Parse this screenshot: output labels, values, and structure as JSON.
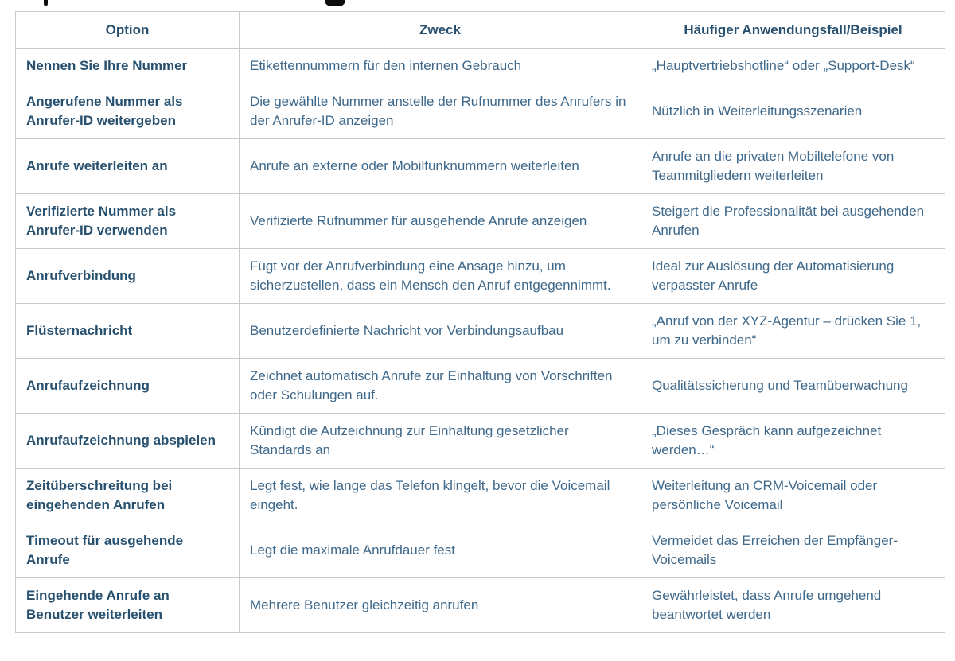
{
  "colors": {
    "header_text": "#27506f",
    "option_text": "#27506f",
    "body_text": "#3e688a",
    "border": "#cbcbcb",
    "background": "#ffffff"
  },
  "table": {
    "columns": [
      "Option",
      "Zweck",
      "Häufiger Anwendungsfall/Beispiel"
    ],
    "rows": [
      {
        "option": "Nennen Sie Ihre Nummer",
        "zweck": "Etikettennummern für den internen Gebrauch",
        "beispiel": "„Hauptvertriebshotline“ oder „Support-Desk“"
      },
      {
        "option": "Angerufene Nummer als Anrufer-ID weitergeben",
        "zweck": "Die gewählte Nummer anstelle der Rufnummer des Anrufers in der Anrufer-ID anzeigen",
        "beispiel": "Nützlich in Weiterleitungsszenarien"
      },
      {
        "option": "Anrufe weiterleiten an",
        "zweck": "Anrufe an externe oder Mobilfunknummern weiterleiten",
        "beispiel": "Anrufe an die privaten Mobiltelefone von Teammitgliedern weiterleiten"
      },
      {
        "option": "Verifizierte Nummer als Anrufer-ID verwenden",
        "zweck": "Verifizierte Rufnummer für ausgehende Anrufe anzeigen",
        "beispiel": "Steigert die Professionalität bei ausgehenden Anrufen"
      },
      {
        "option": "Anrufverbindung",
        "zweck": "Fügt vor der Anrufverbindung eine Ansage hinzu, um sicherzustellen, dass ein Mensch den Anruf entgegennimmt.",
        "beispiel": "Ideal zur Auslösung der Automatisierung verpasster Anrufe"
      },
      {
        "option": "Flüsternachricht",
        "zweck": "Benutzerdefinierte Nachricht vor Verbindungsaufbau",
        "beispiel": "„Anruf von der XYZ-Agentur – drücken Sie 1, um zu verbinden“"
      },
      {
        "option": "Anrufaufzeichnung",
        "zweck": "Zeichnet automatisch Anrufe zur Einhaltung von Vorschriften oder Schulungen auf.",
        "beispiel": "Qualitätssicherung und Teamüberwachung"
      },
      {
        "option": "Anrufaufzeichnung abspielen",
        "zweck": "Kündigt die Aufzeichnung zur Einhaltung gesetzlicher Standards an",
        "beispiel": "„Dieses Gespräch kann aufgezeichnet werden…“"
      },
      {
        "option": "Zeitüberschreitung bei eingehenden Anrufen",
        "zweck": "Legt fest, wie lange das Telefon klingelt, bevor die Voicemail eingeht.",
        "beispiel": "Weiterleitung an CRM-Voicemail oder persönliche Voicemail"
      },
      {
        "option": "Timeout für ausgehende Anrufe",
        "zweck": "Legt die maximale Anrufdauer fest",
        "beispiel": "Vermeidet das Erreichen der Empfänger-Voicemails"
      },
      {
        "option": "Eingehende Anrufe an Benutzer weiterleiten",
        "zweck": "Mehrere Benutzer gleichzeitig anrufen",
        "beispiel": "Gewährleistet, dass Anrufe umgehend beantwortet werden"
      }
    ]
  }
}
